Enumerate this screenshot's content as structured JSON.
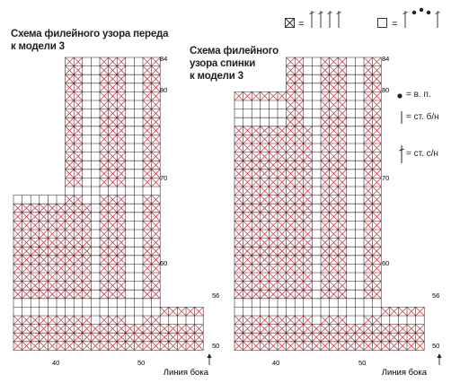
{
  "front": {
    "title": "Схема филейного узора переда\n к модели 3",
    "row_labels": [
      "84",
      "80",
      "70",
      "60",
      "56",
      "50"
    ],
    "col_labels": [
      "40",
      "50"
    ],
    "side_label": "Линия бока"
  },
  "back": {
    "title": "Схема филейного\nузора спинки\nк модели 3",
    "row_labels": [
      "84",
      "80",
      "70",
      "60",
      "56",
      "50"
    ],
    "col_labels": [
      "40",
      "50"
    ],
    "side_label": "Линия бока"
  },
  "legend": {
    "eq1": "=",
    "eq2": "=",
    "items": [
      {
        "icon": "dot-icon",
        "text": "= в. п."
      },
      {
        "icon": "single-crochet-icon",
        "text": "= ст. б/н"
      },
      {
        "icon": "double-crochet-icon",
        "text": "= ст. с/н"
      }
    ]
  },
  "colors": {
    "filled": "#d03945",
    "grid": "#231f20"
  }
}
